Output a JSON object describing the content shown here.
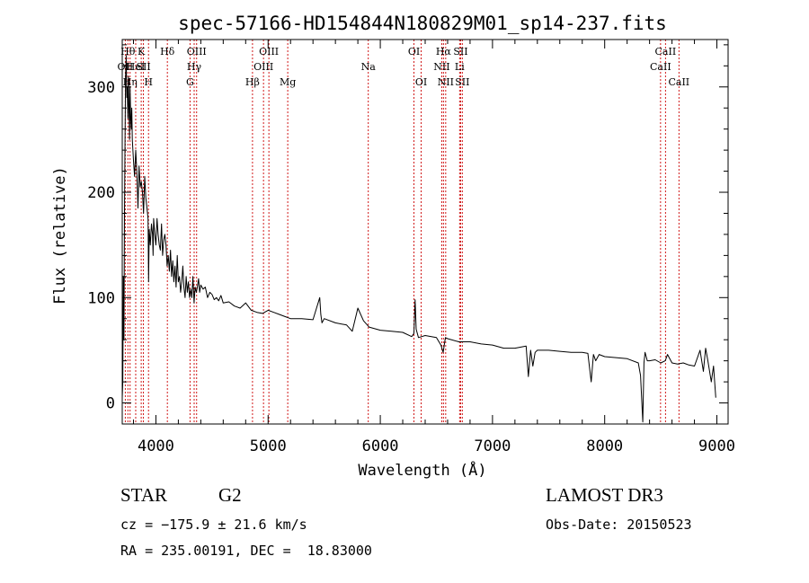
{
  "chart_data": {
    "type": "line",
    "title": "spec-57166-HD154844N180829M01_sp14-237.fits",
    "xlabel": "Wavelength (Å)",
    "ylabel": "Flux (relative)",
    "xlim": [
      3700,
      9100
    ],
    "ylim": [
      -20,
      345
    ],
    "xticks": [
      4000,
      5000,
      6000,
      7000,
      8000,
      9000
    ],
    "yticks": [
      0,
      100,
      200,
      300
    ],
    "grid": false,
    "line_color": "#000000",
    "marker_color": "#cc0000",
    "series": [
      {
        "x": [
          3700,
          3705,
          3710,
          3715,
          3720,
          3725,
          3730,
          3735,
          3740,
          3745,
          3750,
          3755,
          3760,
          3765,
          3770,
          3775,
          3780,
          3785,
          3790,
          3800,
          3810,
          3820,
          3830,
          3840,
          3850,
          3860,
          3870,
          3880,
          3890,
          3900,
          3910,
          3920,
          3930,
          3935,
          3940,
          3950,
          3960,
          3970,
          3975,
          3980,
          3990,
          4000,
          4010,
          4020,
          4030,
          4040,
          4050,
          4060,
          4070,
          4080,
          4090,
          4100,
          4110,
          4120,
          4130,
          4140,
          4150,
          4160,
          4170,
          4180,
          4190,
          4200,
          4210,
          4220,
          4230,
          4240,
          4250,
          4260,
          4270,
          4280,
          4290,
          4300,
          4310,
          4320,
          4330,
          4340,
          4350,
          4360,
          4370,
          4380,
          4390,
          4400,
          4420,
          4440,
          4460,
          4480,
          4500,
          4520,
          4540,
          4560,
          4580,
          4600,
          4650,
          4700,
          4750,
          4800,
          4850,
          4900,
          4950,
          5000,
          5050,
          5100,
          5150,
          5200,
          5300,
          5400,
          5460,
          5470,
          5480,
          5500,
          5600,
          5700,
          5750,
          5800,
          5850,
          5900,
          6000,
          6100,
          6200,
          6280,
          6300,
          6310,
          6320,
          6340,
          6400,
          6500,
          6540,
          6560,
          6580,
          6600,
          6700,
          6800,
          6900,
          7000,
          7100,
          7200,
          7300,
          7320,
          7340,
          7360,
          7380,
          7400,
          7500,
          7600,
          7700,
          7800,
          7850,
          7880,
          7900,
          7920,
          7950,
          8000,
          8100,
          8200,
          8300,
          8320,
          8340,
          8350,
          8360,
          8380,
          8400,
          8450,
          8500,
          8540,
          8560,
          8600,
          8650,
          8700,
          8750,
          8800,
          8850,
          8880,
          8900,
          8920,
          8950,
          8970,
          8990
        ],
        "y": [
          5,
          20,
          120,
          60,
          180,
          250,
          310,
          330,
          290,
          300,
          270,
          310,
          280,
          250,
          300,
          270,
          260,
          280,
          250,
          230,
          215,
          240,
          220,
          185,
          225,
          205,
          210,
          200,
          180,
          215,
          195,
          185,
          175,
          115,
          165,
          150,
          170,
          160,
          140,
          175,
          160,
          150,
          175,
          160,
          150,
          145,
          170,
          140,
          155,
          160,
          150,
          130,
          140,
          125,
          145,
          120,
          135,
          115,
          130,
          110,
          140,
          115,
          120,
          105,
          115,
          130,
          110,
          100,
          120,
          105,
          115,
          100,
          108,
          100,
          120,
          95,
          110,
          105,
          110,
          118,
          105,
          112,
          108,
          110,
          100,
          105,
          103,
          98,
          100,
          97,
          102,
          95,
          96,
          92,
          90,
          95,
          88,
          86,
          85,
          88,
          86,
          84,
          82,
          80,
          80,
          79,
          100,
          84,
          76,
          80,
          76,
          74,
          68,
          90,
          78,
          72,
          69,
          68,
          67,
          63,
          66,
          98,
          70,
          62,
          64,
          62,
          55,
          48,
          62,
          61,
          58,
          58,
          56,
          55,
          52,
          52,
          54,
          25,
          50,
          35,
          48,
          50,
          50,
          49,
          48,
          48,
          47,
          20,
          46,
          40,
          46,
          44,
          43,
          42,
          38,
          26,
          -18,
          38,
          48,
          40,
          40,
          41,
          38,
          40,
          46,
          38,
          37,
          38,
          36,
          35,
          50,
          30,
          52,
          40,
          20,
          35,
          5
        ]
      }
    ],
    "lines": [
      {
        "x": 3727,
        "label": "OII",
        "row": 2
      },
      {
        "x": 3750,
        "label": "Hθ",
        "row": 1
      },
      {
        "x": 3770,
        "label": "Hη",
        "row": 3
      },
      {
        "x": 3820,
        "label": "HeI",
        "row": 2
      },
      {
        "x": 3869,
        "label": "K",
        "row": 1
      },
      {
        "x": 3889,
        "label": "SII",
        "row": 2
      },
      {
        "x": 3934,
        "label": "H",
        "row": 3
      },
      {
        "x": 4102,
        "label": "Hδ",
        "row": 1
      },
      {
        "x": 4304,
        "label": "G",
        "row": 3
      },
      {
        "x": 4341,
        "label": "Hγ",
        "row": 2
      },
      {
        "x": 4363,
        "label": "OIII",
        "row": 1
      },
      {
        "x": 4861,
        "label": "Hβ",
        "row": 3
      },
      {
        "x": 4959,
        "label": "OIII",
        "row": 2
      },
      {
        "x": 5007,
        "label": "OIII",
        "row": 1
      },
      {
        "x": 5175,
        "label": "Mg",
        "row": 3
      },
      {
        "x": 5893,
        "label": "Na",
        "row": 2
      },
      {
        "x": 6300,
        "label": "OI",
        "row": 1
      },
      {
        "x": 6364,
        "label": "OI",
        "row": 3
      },
      {
        "x": 6548,
        "label": "NII",
        "row": 2
      },
      {
        "x": 6563,
        "label": "Hα",
        "row": 1
      },
      {
        "x": 6583,
        "label": "NII",
        "row": 3
      },
      {
        "x": 6707,
        "label": "Li",
        "row": 2
      },
      {
        "x": 6716,
        "label": "SII",
        "row": 1
      },
      {
        "x": 6731,
        "label": "SII",
        "row": 3
      },
      {
        "x": 8498,
        "label": "CaII",
        "row": 2
      },
      {
        "x": 8542,
        "label": "CaII",
        "row": 1
      },
      {
        "x": 8662,
        "label": "CaII",
        "row": 3
      }
    ]
  },
  "info": {
    "object_class": "STAR",
    "subclass": "G2",
    "survey": "LAMOST DR3",
    "cz": "cz = −175.9 ± 21.6 km/s",
    "obs_date": "Obs-Date: 20150523",
    "coords": "RA = 235.00191, DEC =  18.83000"
  }
}
